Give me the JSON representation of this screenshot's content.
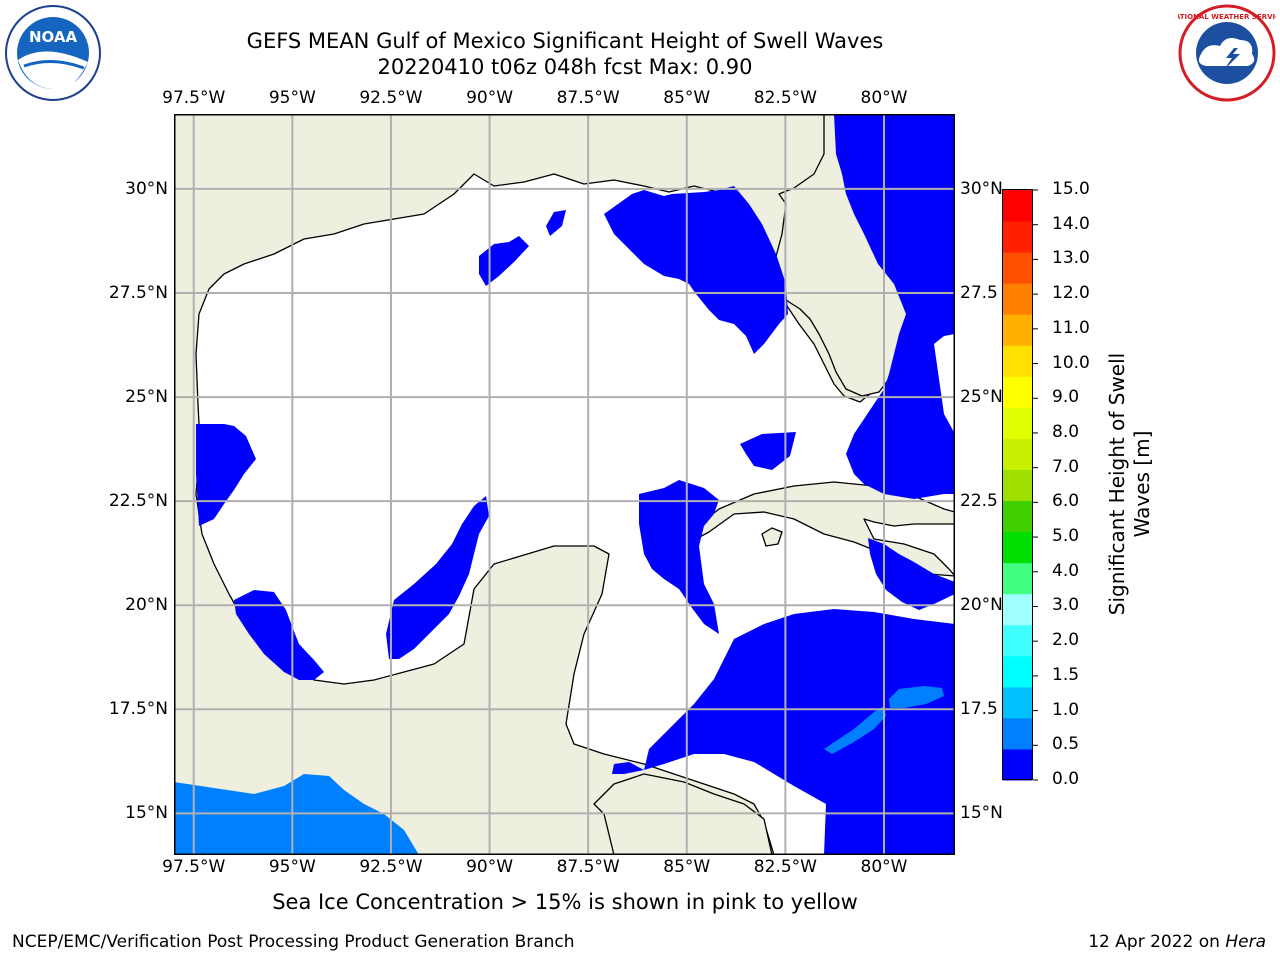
{
  "title": {
    "line1": "GEFS MEAN Gulf of Mexico Significant Height of Swell Waves",
    "line2": "20220410 t06z 048h fcst   Max: 0.90"
  },
  "map": {
    "lon_range": [
      -98,
      -78.2
    ],
    "lat_range": [
      14,
      31.8
    ],
    "lon_ticks": [
      "97.5°W",
      "95°W",
      "92.5°W",
      "90°W",
      "87.5°W",
      "85°W",
      "82.5°W",
      "80°W"
    ],
    "lat_ticks_left": [
      "30°N",
      "27.5°N",
      "25°N",
      "22.5°N",
      "20°N",
      "17.5°N",
      "15°N"
    ],
    "lat_ticks_right": [
      "30°N",
      "27.5",
      "25°N",
      "22.5",
      "20°N",
      "17.5",
      "15°N"
    ],
    "colors": {
      "land": "#efefdf",
      "ocean_low": "#0000ff",
      "ocean_mid": "#0080ff",
      "grid": "#b0b0b0"
    }
  },
  "colorbar": {
    "title": "Significant Height of Swell Waves [m]",
    "labels": [
      "15.0",
      "14.0",
      "13.0",
      "12.0",
      "11.0",
      "10.0",
      "9.0",
      "8.0",
      "7.0",
      "6.0",
      "5.0",
      "4.0",
      "3.0",
      "2.0",
      "1.5",
      "1.0",
      "0.5",
      "0.0"
    ],
    "colors": [
      "#0000ff",
      "#0080ff",
      "#00c0ff",
      "#00ffff",
      "#40ffff",
      "#a0ffff",
      "#40ff80",
      "#00e000",
      "#40d000",
      "#a0e000",
      "#c8f000",
      "#e0ff00",
      "#ffff00",
      "#ffe000",
      "#ffb000",
      "#ff8000",
      "#ff5000",
      "#ff2000",
      "#ff0000"
    ]
  },
  "footnote": "Sea Ice Concentration > 15% is shown in pink to yellow",
  "credit": "NCEP/EMC/Verification Post Processing Product Generation Branch",
  "date_text": "12 Apr 2022 on",
  "date_host": "Hera",
  "logos": {
    "left": "NOAA",
    "right": "NATIONAL WEATHER SERVICE"
  }
}
